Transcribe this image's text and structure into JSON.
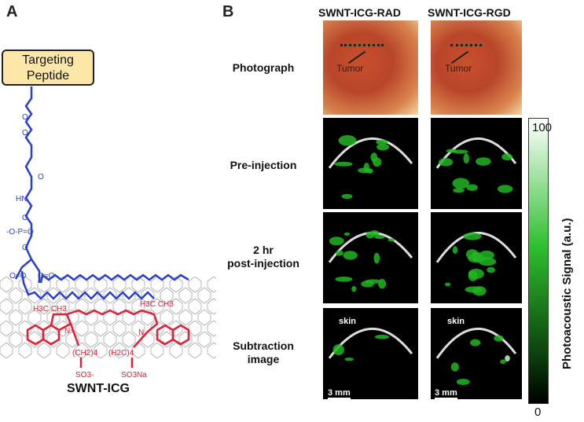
{
  "panel_a": {
    "letter": "A",
    "peptide_label_line1": "Targeting",
    "peptide_label_line2": "Peptide",
    "compound_label": "SWNT-ICG",
    "chem_labels": {
      "o1": "O",
      "o2": "O",
      "o3": "O",
      "hn": "HN",
      "o4": "O",
      "o5": "O",
      "phos": "-O-P=O",
      "o6": "O",
      "ester1": "O=O",
      "ester2": "O=O",
      "h3c_ch3_left": "H3C CH3",
      "h3c_ch3_right": "H3C CH3",
      "n_plus": "N+",
      "n": "N",
      "ch2_4": "(CH2)4",
      "h2c_4": "(H2C)4",
      "so3minus": "SO3-",
      "so3na": "SO3Na"
    },
    "colors": {
      "linker": "#2a3fcf",
      "dye": "#e0203a",
      "nanotube": "#9a9a9a",
      "peptide_box": "#fde7a8"
    }
  },
  "panel_b": {
    "letter": "B",
    "columns": [
      "SWNT-ICG-RAD",
      "SWNT-ICG-RGD"
    ],
    "rows": [
      {
        "label_line1": "Photograph",
        "label_line2": ""
      },
      {
        "label_line1": "Pre-injection",
        "label_line2": ""
      },
      {
        "label_line1": "2 hr",
        "label_line2": "post-injection"
      },
      {
        "label_line1": "Subtraction",
        "label_line2": "image"
      }
    ],
    "tumor_label": "Tumor",
    "skin_label": "skin",
    "scale_bar": "3 mm",
    "colorbar": {
      "max": "100",
      "min": "0",
      "title": "Photoacoustic Signal (a.u.)",
      "colors": [
        "#000000",
        "#2fbf2f",
        "#ffffff"
      ]
    }
  }
}
